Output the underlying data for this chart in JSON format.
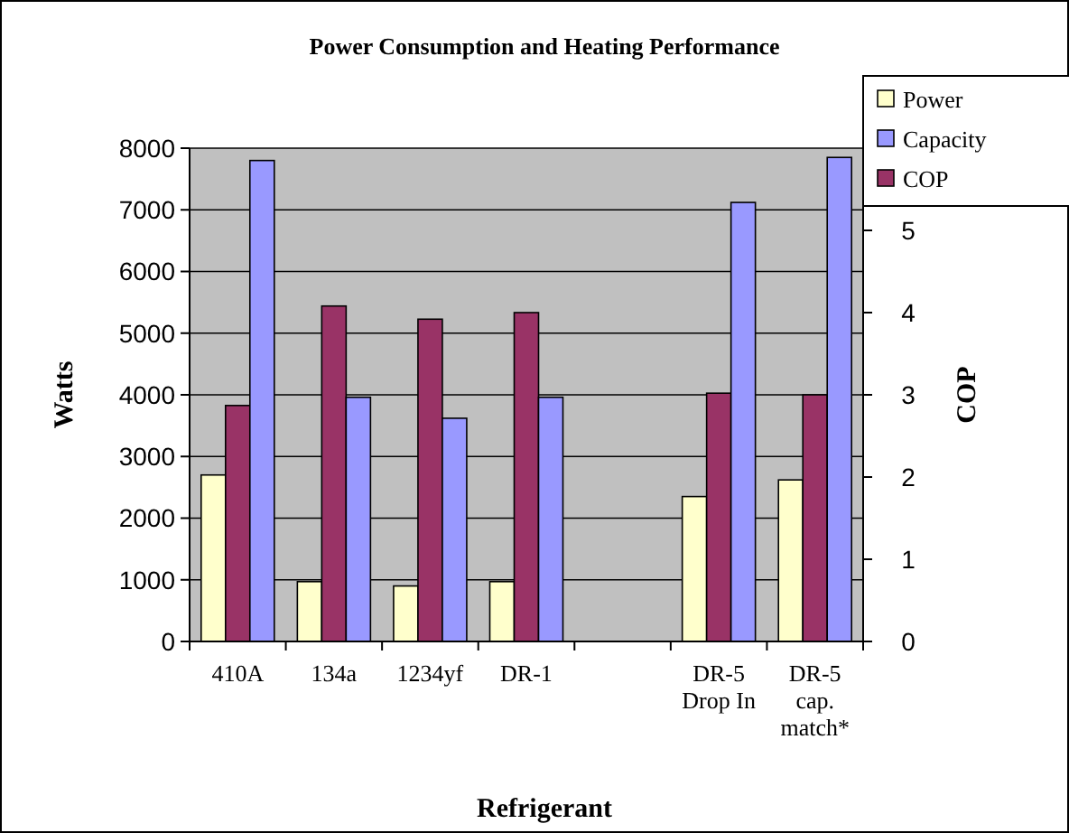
{
  "chart_data": {
    "type": "bar",
    "title": "Power Consumption and Heating Performance",
    "xlabel": "Refrigerant",
    "ylabel": "Watts",
    "y2label": "COP",
    "categories": [
      "410A",
      "134a",
      "1234yf",
      "DR-1",
      null,
      "DR-5 Drop In",
      "DR-5 cap. match*"
    ],
    "series": [
      {
        "name": "Power",
        "color": "#ffffcc",
        "values": [
          2700,
          970,
          900,
          970,
          null,
          2350,
          2620
        ]
      },
      {
        "name": "COP",
        "color": "#993366",
        "axis": "y2",
        "values": [
          2.87,
          4.08,
          3.92,
          4.0,
          null,
          3.02,
          3.0
        ]
      },
      {
        "name": "Capacity",
        "color": "#9999ff",
        "values": [
          7800,
          3960,
          3620,
          3960,
          null,
          7120,
          7850
        ]
      }
    ],
    "ylim": [
      0,
      8000
    ],
    "yticks": [
      0,
      1000,
      2000,
      3000,
      4000,
      5000,
      6000,
      7000,
      8000
    ],
    "y2lim": [
      0,
      6
    ],
    "y2ticks": [
      0,
      1,
      2,
      3,
      4,
      5
    ],
    "grid": "y",
    "legend": "top right"
  }
}
